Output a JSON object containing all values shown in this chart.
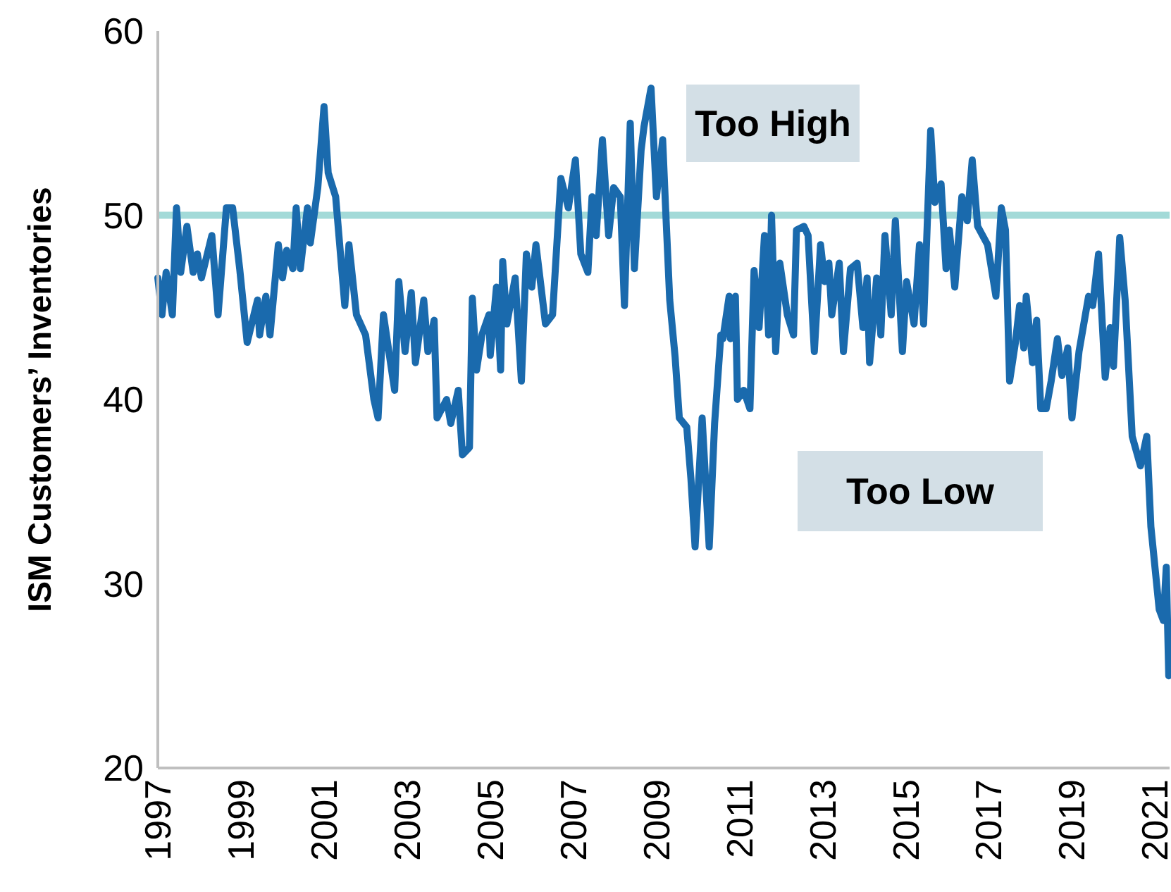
{
  "chart_data": {
    "type": "line",
    "ylabel": "ISM Customers’ Inventories",
    "xlim": [
      1997,
      2021.35
    ],
    "ylim": [
      20,
      60
    ],
    "yticks": [
      20,
      30,
      40,
      50,
      60
    ],
    "xticks": [
      1997,
      1999,
      2001,
      2003,
      2005,
      2007,
      2009,
      2011,
      2013,
      2015,
      2017,
      2019,
      2021
    ],
    "grid": false,
    "line_style": "solid",
    "ref_lines": [
      {
        "axis": "y",
        "value": 50,
        "color": "#a3dad8"
      }
    ],
    "annotations": [
      "Too High",
      "Too Low"
    ],
    "series": [
      {
        "color": "#1a6aad",
        "x": [
          1997.0,
          1997.1,
          1997.2,
          1997.35,
          1997.45,
          1997.55,
          1997.7,
          1997.85,
          1997.95,
          1998.05,
          1998.3,
          1998.45,
          1998.65,
          1998.8,
          1998.97,
          1999.15,
          1999.4,
          1999.45,
          1999.6,
          1999.7,
          1999.9,
          2000.0,
          2000.1,
          2000.25,
          2000.33,
          2000.43,
          2000.6,
          2000.67,
          2000.85,
          2001.0,
          2001.1,
          2001.28,
          2001.5,
          2001.6,
          2001.78,
          2002.0,
          2002.2,
          2002.3,
          2002.43,
          2002.6,
          2002.7,
          2002.8,
          2002.95,
          2003.1,
          2003.2,
          2003.4,
          2003.5,
          2003.65,
          2003.72,
          2003.95,
          2004.05,
          2004.23,
          2004.33,
          2004.5,
          2004.57,
          2004.67,
          2004.8,
          2004.97,
          2005.0,
          2005.15,
          2005.25,
          2005.3,
          2005.4,
          2005.6,
          2005.75,
          2005.87,
          2006.0,
          2006.1,
          2006.33,
          2006.5,
          2006.7,
          2006.88,
          2007.05,
          2007.18,
          2007.35,
          2007.45,
          2007.55,
          2007.7,
          2007.85,
          2007.97,
          2008.13,
          2008.23,
          2008.37,
          2008.47,
          2008.63,
          2008.7,
          2008.87,
          2009.0,
          2009.15,
          2009.22,
          2009.32,
          2009.45,
          2009.55,
          2009.73,
          2009.83,
          2009.93,
          2010.1,
          2010.27,
          2010.4,
          2010.55,
          2010.6,
          2010.75,
          2010.78,
          2010.9,
          2010.95,
          2011.1,
          2011.25,
          2011.35,
          2011.47,
          2011.6,
          2011.7,
          2011.77,
          2011.87,
          2011.97,
          2012.15,
          2012.3,
          2012.37,
          2012.55,
          2012.65,
          2012.8,
          2012.95,
          2013.05,
          2013.15,
          2013.22,
          2013.4,
          2013.5,
          2013.67,
          2013.83,
          2013.97,
          2014.07,
          2014.13,
          2014.3,
          2014.4,
          2014.5,
          2014.65,
          2014.75,
          2014.92,
          2015.02,
          2015.2,
          2015.33,
          2015.43,
          2015.6,
          2015.7,
          2015.85,
          2015.97,
          2016.05,
          2016.18,
          2016.35,
          2016.48,
          2016.6,
          2016.73,
          2016.97,
          2017.17,
          2017.3,
          2017.4,
          2017.5,
          2017.64,
          2017.74,
          2017.84,
          2017.9,
          2018.05,
          2018.15,
          2018.25,
          2018.38,
          2018.5,
          2018.65,
          2018.76,
          2018.9,
          2019.0,
          2019.17,
          2019.4,
          2019.5,
          2019.64,
          2019.8,
          2019.92,
          2020.0,
          2020.15,
          2020.28,
          2020.45,
          2020.65,
          2020.8,
          2020.9,
          2021.1,
          2021.2,
          2021.27,
          2021.33
        ],
        "values": [
          46.6,
          44.6,
          46.9,
          44.6,
          50.4,
          46.9,
          49.4,
          46.9,
          47.9,
          46.6,
          48.9,
          44.6,
          50.4,
          50.4,
          47.1,
          43.1,
          45.4,
          43.5,
          45.6,
          43.5,
          48.4,
          46.6,
          48.1,
          47.1,
          50.4,
          47.1,
          50.4,
          48.5,
          51.5,
          55.9,
          52.3,
          51.0,
          45.1,
          48.4,
          44.6,
          43.5,
          40.0,
          39.0,
          44.6,
          42.0,
          40.5,
          46.4,
          42.6,
          45.8,
          42.0,
          45.4,
          42.6,
          44.3,
          39.0,
          40.0,
          38.7,
          40.5,
          37.0,
          37.4,
          45.5,
          41.6,
          43.5,
          44.6,
          42.4,
          46.1,
          41.6,
          47.5,
          44.1,
          46.6,
          41.0,
          47.9,
          46.1,
          48.4,
          44.1,
          44.6,
          52.0,
          50.4,
          53.0,
          47.9,
          46.9,
          51.0,
          48.9,
          54.1,
          48.9,
          51.5,
          51.0,
          45.1,
          55.0,
          47.1,
          53.5,
          54.8,
          56.9,
          51.0,
          54.1,
          50.4,
          45.4,
          42.3,
          39.0,
          38.5,
          35.7,
          32.0,
          39.0,
          32.0,
          38.7,
          43.5,
          43.3,
          45.6,
          43.3,
          45.6,
          40.0,
          40.5,
          39.5,
          47.0,
          43.9,
          48.9,
          43.5,
          50.0,
          42.6,
          47.4,
          44.6,
          43.5,
          49.2,
          49.4,
          48.9,
          42.6,
          48.4,
          46.4,
          47.4,
          44.6,
          47.4,
          42.6,
          47.1,
          47.4,
          43.9,
          46.6,
          42.0,
          46.6,
          43.5,
          48.9,
          44.6,
          49.7,
          42.6,
          46.4,
          44.1,
          48.4,
          44.1,
          54.6,
          50.7,
          51.7,
          47.1,
          49.2,
          46.1,
          51.0,
          49.7,
          53.0,
          49.4,
          48.4,
          45.6,
          50.4,
          49.2,
          41.0,
          43.1,
          45.1,
          42.8,
          45.6,
          42.0,
          44.3,
          39.5,
          39.5,
          41.0,
          43.3,
          41.3,
          42.8,
          39.0,
          42.6,
          45.6,
          45.1,
          47.9,
          41.2,
          43.9,
          41.8,
          48.8,
          45.4,
          38.0,
          36.4,
          38.0,
          33.1,
          28.6,
          28.0,
          30.9,
          25.0
        ]
      }
    ]
  }
}
